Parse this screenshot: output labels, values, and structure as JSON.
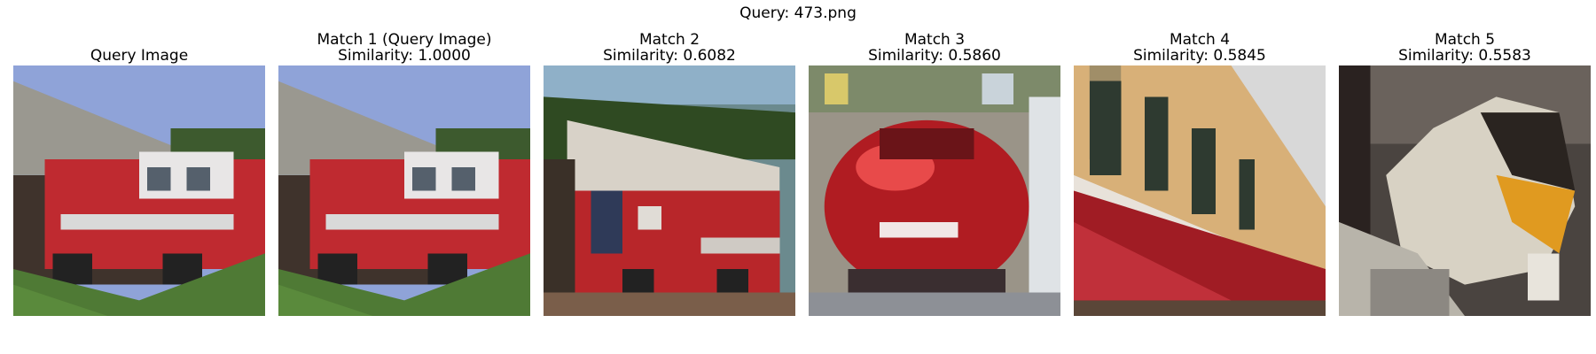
{
  "figure": {
    "title": "Query: 473.png"
  },
  "panels": [
    {
      "line1": "",
      "line2": "Query Image",
      "image": "fire-truck-parked-outside-station"
    },
    {
      "line1": "Match 1 (Query Image)",
      "line2": "Similarity: 1.0000",
      "image": "fire-truck-parked-outside-station"
    },
    {
      "line1": "Match 2",
      "line2": "Similarity: 0.6082",
      "image": "red-fire-truck-with-ladder"
    },
    {
      "line1": "Match 3",
      "line2": "Similarity: 0.5860",
      "image": "red-car-rear-view"
    },
    {
      "line1": "Match 4",
      "line2": "Similarity: 0.5845",
      "image": "red-and-cream-train-car"
    },
    {
      "line1": "Match 5",
      "line2": "Similarity: 0.5583",
      "image": "yellow-front-train-at-platform"
    }
  ]
}
